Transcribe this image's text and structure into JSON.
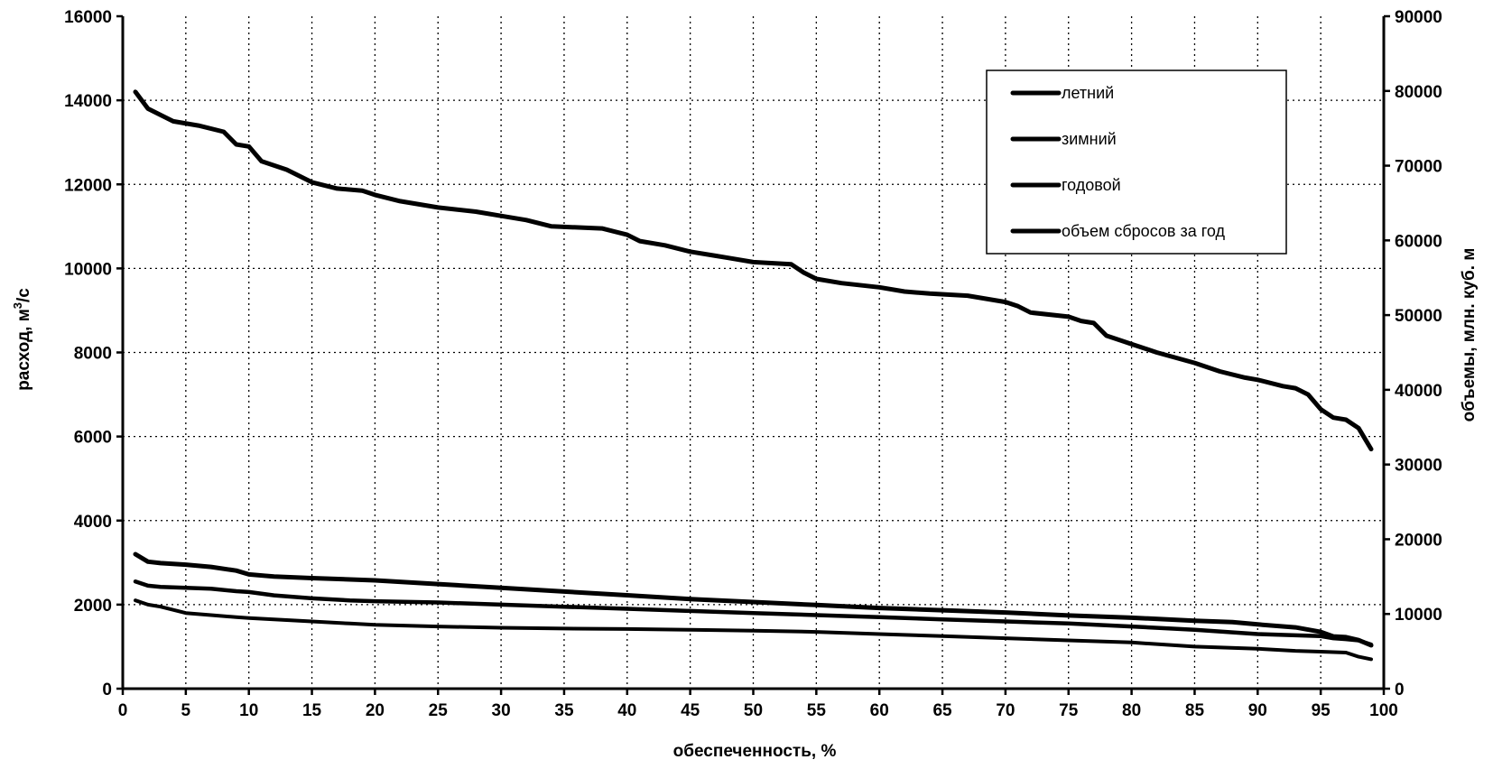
{
  "chart_data": {
    "type": "line",
    "xlabel": "обеспеченность, %",
    "ylabel": "расход, м³/с",
    "ylabel_parts": {
      "pre": "расход, м",
      "sup": "3",
      "post": "/с"
    },
    "y2label": "объемы, млн. куб. м",
    "xlim": [
      0,
      100
    ],
    "ylim": [
      0,
      16000
    ],
    "y2lim": [
      0,
      90000
    ],
    "x_ticks": [
      0,
      5,
      10,
      15,
      20,
      25,
      30,
      35,
      40,
      45,
      50,
      55,
      60,
      65,
      70,
      75,
      80,
      85,
      90,
      95,
      100
    ],
    "y_ticks": [
      0,
      2000,
      4000,
      6000,
      8000,
      10000,
      12000,
      14000,
      16000
    ],
    "y2_ticks": [
      0,
      10000,
      20000,
      30000,
      40000,
      50000,
      60000,
      70000,
      80000,
      90000
    ],
    "grid": true,
    "legend_position": "top-right",
    "line_color": "#000000",
    "series": [
      {
        "name": "летний",
        "axis": "left",
        "x": [
          1,
          2,
          4,
          6,
          8,
          9,
          10,
          11,
          13,
          15,
          17,
          19,
          20,
          22,
          25,
          28,
          30,
          32,
          34,
          38,
          40,
          41,
          43,
          45,
          47,
          48,
          50,
          53,
          54,
          55,
          57,
          60,
          62,
          64,
          67,
          70,
          71,
          72,
          75,
          76,
          77,
          78,
          80,
          82,
          85,
          87,
          89,
          90,
          92,
          93,
          94,
          95,
          96,
          97,
          98,
          99
        ],
        "y": [
          14200,
          13800,
          13500,
          13400,
          13250,
          12950,
          12900,
          12550,
          12350,
          12050,
          11900,
          11850,
          11750,
          11600,
          11450,
          11350,
          11250,
          11150,
          11000,
          10950,
          10800,
          10650,
          10550,
          10400,
          10300,
          10250,
          10150,
          10100,
          9900,
          9750,
          9650,
          9550,
          9450,
          9400,
          9350,
          9200,
          9100,
          8950,
          8850,
          8750,
          8700,
          8400,
          8200,
          8000,
          7750,
          7550,
          7400,
          7350,
          7200,
          7150,
          7000,
          6650,
          6450,
          6400,
          6200,
          5700
        ]
      },
      {
        "name": "зимний",
        "axis": "left",
        "x": [
          1,
          2,
          3,
          5,
          7,
          9,
          10,
          12,
          15,
          18,
          20,
          25,
          30,
          35,
          40,
          45,
          50,
          55,
          60,
          65,
          70,
          75,
          80,
          85,
          90,
          93,
          95,
          96,
          97,
          98,
          99
        ],
        "y": [
          2100,
          2000,
          1950,
          1800,
          1750,
          1700,
          1680,
          1650,
          1600,
          1550,
          1520,
          1480,
          1450,
          1430,
          1420,
          1400,
          1380,
          1350,
          1300,
          1250,
          1200,
          1150,
          1100,
          1000,
          950,
          900,
          880,
          870,
          860,
          760,
          700
        ]
      },
      {
        "name": "годовой",
        "axis": "left",
        "x": [
          1,
          2,
          3,
          5,
          7,
          9,
          10,
          12,
          15,
          18,
          20,
          25,
          30,
          35,
          40,
          45,
          50,
          55,
          60,
          65,
          70,
          75,
          80,
          85,
          90,
          95,
          96,
          97,
          98,
          99
        ],
        "y": [
          2550,
          2450,
          2420,
          2400,
          2380,
          2320,
          2300,
          2220,
          2150,
          2100,
          2080,
          2050,
          2000,
          1950,
          1900,
          1850,
          1800,
          1750,
          1700,
          1650,
          1600,
          1550,
          1480,
          1400,
          1300,
          1250,
          1200,
          1180,
          1150,
          1050
        ]
      },
      {
        "name": "объем сбросов за год",
        "axis": "right",
        "x": [
          1,
          2,
          3,
          5,
          7,
          9,
          10,
          12,
          15,
          20,
          25,
          30,
          35,
          40,
          45,
          50,
          55,
          60,
          65,
          70,
          75,
          80,
          85,
          88,
          90,
          93,
          95,
          96,
          97,
          98,
          99
        ],
        "y": [
          18000,
          17000,
          16800,
          16600,
          16300,
          15800,
          15300,
          15000,
          14800,
          14500,
          14000,
          13500,
          13000,
          12500,
          12000,
          11600,
          11200,
          10800,
          10500,
          10200,
          9800,
          9500,
          9100,
          8900,
          8600,
          8200,
          7600,
          7000,
          6900,
          6500,
          5800
        ]
      }
    ]
  }
}
